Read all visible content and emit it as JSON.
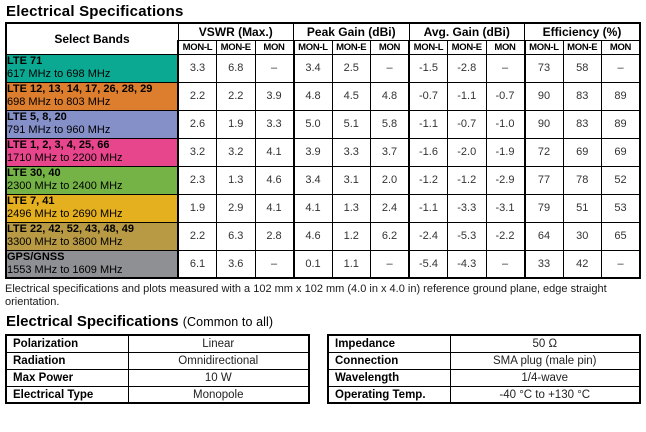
{
  "page": {
    "title": "Electrical Specifications",
    "footnote": "Electrical specifications and plots measured with a 102 mm x 102 mm (4.0 in x 4.0 in) reference ground plane, edge straight orientation.",
    "common_title_main": "Electrical Specifications",
    "common_title_suffix": "(Common to all)"
  },
  "main_table": {
    "corner_header": "Select Bands",
    "groups": [
      {
        "label": "VSWR (Max.)"
      },
      {
        "label": "Peak Gain (dBi)"
      },
      {
        "label": "Avg. Gain (dBi)"
      },
      {
        "label": "Efficiency (%)"
      }
    ],
    "subheaders": [
      "MON-L",
      "MON-E",
      "MON"
    ],
    "rows": [
      {
        "band": "LTE 71",
        "range": "617 MHz to 698 MHz",
        "color": "#0ca992",
        "values": [
          "3.3",
          "6.8",
          "–",
          "3.4",
          "2.5",
          "–",
          "-1.5",
          "-2.8",
          "–",
          "73",
          "58",
          "–"
        ]
      },
      {
        "band": "LTE 12, 13, 14, 17, 26, 28, 29",
        "range": "698 MHz to 803 MHz",
        "color": "#dd7e2e",
        "values": [
          "2.2",
          "2.2",
          "3.9",
          "4.8",
          "4.5",
          "4.8",
          "-0.7",
          "-1.1",
          "-0.7",
          "90",
          "83",
          "89"
        ]
      },
      {
        "band": "LTE 5, 8, 20",
        "range": "791 MHz to 960 MHz",
        "color": "#8590c9",
        "values": [
          "2.6",
          "1.9",
          "3.3",
          "5.0",
          "5.1",
          "5.8",
          "-1.1",
          "-0.7",
          "-1.0",
          "90",
          "83",
          "89"
        ]
      },
      {
        "band": "LTE 1, 2, 3, 4, 25, 66",
        "range": "1710 MHz to 2200 MHz",
        "color": "#e7458c",
        "values": [
          "3.2",
          "3.2",
          "4.1",
          "3.9",
          "3.3",
          "3.7",
          "-1.6",
          "-2.0",
          "-1.9",
          "72",
          "69",
          "69"
        ]
      },
      {
        "band": "LTE 30, 40",
        "range": "2300 MHz to 2400 MHz",
        "color": "#75b347",
        "values": [
          "2.3",
          "1.3",
          "4.6",
          "3.4",
          "3.1",
          "2.0",
          "-1.2",
          "-1.2",
          "-2.9",
          "77",
          "78",
          "52"
        ]
      },
      {
        "band": "LTE 7, 41",
        "range": "2496 MHz to 2690 MHz",
        "color": "#e5b01f",
        "values": [
          "1.9",
          "2.9",
          "4.1",
          "4.1",
          "1.3",
          "2.4",
          "-1.1",
          "-3.3",
          "-3.1",
          "79",
          "51",
          "53"
        ]
      },
      {
        "band": "LTE 22, 42, 52, 43, 48, 49",
        "range": "3300 MHz to 3800 MHz",
        "color": "#b79a43",
        "values": [
          "2.2",
          "6.3",
          "2.8",
          "4.6",
          "1.2",
          "6.2",
          "-2.4",
          "-5.3",
          "-2.2",
          "64",
          "30",
          "65"
        ]
      },
      {
        "band": "GPS/GNSS",
        "range": "1553 MHz to 1609 MHz",
        "color": "#8e9094",
        "values": [
          "6.1",
          "3.6",
          "–",
          "0.1",
          "1.1",
          "–",
          "-5.4",
          "-4.3",
          "–",
          "33",
          "42",
          "–"
        ]
      }
    ]
  },
  "common_left": {
    "rows": [
      {
        "label": "Polarization",
        "value": "Linear"
      },
      {
        "label": "Radiation",
        "value": "Omnidirectional"
      },
      {
        "label": "Max Power",
        "value": "10 W"
      },
      {
        "label": "Electrical Type",
        "value": "Monopole"
      }
    ]
  },
  "common_right": {
    "rows": [
      {
        "label": "Impedance",
        "value": "50 Ω"
      },
      {
        "label": "Connection",
        "value": "SMA plug (male pin)"
      },
      {
        "label": "Wavelength",
        "value": "1/4-wave"
      },
      {
        "label": "Operating Temp.",
        "value": "-40 °C to +130 °C"
      }
    ]
  }
}
